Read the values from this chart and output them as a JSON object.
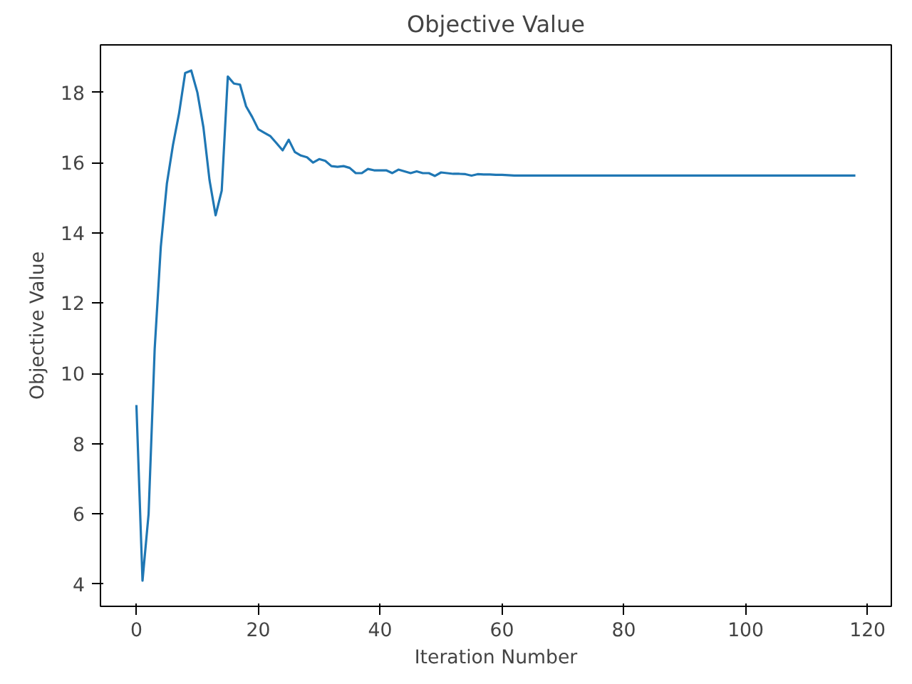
{
  "chart_data": {
    "type": "line",
    "title": "Objective Value",
    "xlabel": "Iteration Number",
    "ylabel": "Objective Value",
    "x": [
      0,
      1,
      2,
      3,
      4,
      5,
      6,
      7,
      8,
      9,
      10,
      11,
      12,
      13,
      14,
      15,
      16,
      17,
      18,
      19,
      20,
      21,
      22,
      23,
      24,
      25,
      26,
      27,
      28,
      29,
      30,
      31,
      32,
      33,
      34,
      35,
      36,
      37,
      38,
      39,
      40,
      41,
      42,
      43,
      44,
      45,
      46,
      47,
      48,
      49,
      50,
      51,
      52,
      53,
      54,
      55,
      56,
      57,
      58,
      59,
      60,
      62,
      70,
      80,
      100,
      118
    ],
    "series": [
      {
        "color": "#1f77b4",
        "values": [
          9.1,
          4.1,
          6.0,
          10.7,
          13.6,
          15.4,
          16.5,
          17.4,
          18.55,
          18.62,
          18.0,
          17.0,
          15.5,
          14.5,
          15.2,
          18.45,
          18.25,
          18.22,
          17.6,
          17.3,
          16.95,
          16.85,
          16.75,
          16.55,
          16.35,
          16.65,
          16.3,
          16.2,
          16.15,
          16.0,
          16.1,
          16.05,
          15.9,
          15.88,
          15.9,
          15.85,
          15.7,
          15.7,
          15.82,
          15.78,
          15.78,
          15.78,
          15.7,
          15.8,
          15.75,
          15.7,
          15.75,
          15.7,
          15.7,
          15.62,
          15.72,
          15.7,
          15.68,
          15.68,
          15.67,
          15.63,
          15.67,
          15.66,
          15.66,
          15.65,
          15.65,
          15.63,
          15.63,
          15.63,
          15.63,
          15.63
        ]
      }
    ],
    "xlim": [
      -5.9,
      123.9
    ],
    "ylim": [
      3.37,
      19.35
    ],
    "xticks": [
      0,
      20,
      40,
      60,
      80,
      100,
      120
    ],
    "yticks": [
      4,
      6,
      8,
      10,
      12,
      14,
      16,
      18
    ],
    "grid": false,
    "marker": "none",
    "line_style": "solid"
  }
}
